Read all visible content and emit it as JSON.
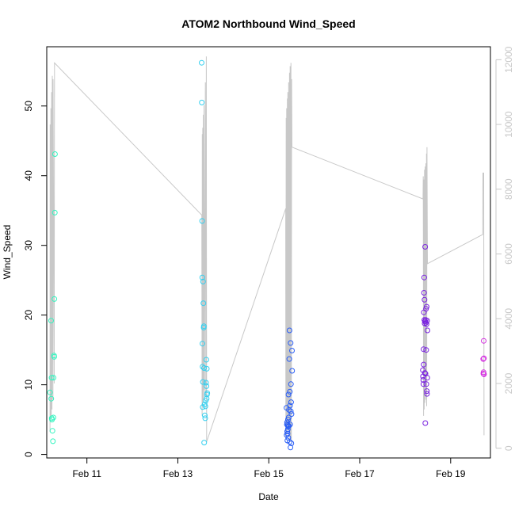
{
  "chart_data": {
    "type": "scatter",
    "title": "ATOM2 Northbound Wind_Speed",
    "xlabel": "Date",
    "ylabel": "Wind_Speed",
    "x_date_year": 2024,
    "xlim": [
      "2024-02-10 02:48",
      "2024-02-19 21:00"
    ],
    "ylim": [
      -0.5,
      58.5
    ],
    "yticks": [
      0,
      10,
      20,
      30,
      40,
      50
    ],
    "x_ticks": [
      {
        "date": "2024-02-11 00:00",
        "label": "Feb 11"
      },
      {
        "date": "2024-02-13 00:00",
        "label": "Feb 13"
      },
      {
        "date": "2024-02-15 00:00",
        "label": "Feb 15"
      },
      {
        "date": "2024-02-17 00:00",
        "label": "Feb 17"
      },
      {
        "date": "2024-02-19 00:00",
        "label": "Feb 19"
      }
    ],
    "secondary_axis": {
      "side": "right",
      "color": "#c8c8c8",
      "ylim": [
        -300,
        12400
      ],
      "ticks": [
        0,
        2000,
        4000,
        6000,
        8000,
        10000,
        12000
      ]
    },
    "grid": false,
    "series": [
      {
        "color": "#33f5c0",
        "points": [
          [
            "2024-02-10 04:32",
            8.9
          ],
          [
            "2024-02-10 05:07",
            19.2
          ],
          [
            "2024-02-10 05:12",
            8.0
          ],
          [
            "2024-02-10 05:22",
            11.0
          ],
          [
            "2024-02-10 05:27",
            5.2
          ],
          [
            "2024-02-10 05:33",
            5.0
          ],
          [
            "2024-02-10 05:48",
            3.4
          ],
          [
            "2024-02-10 06:03",
            1.9
          ],
          [
            "2024-02-10 06:19",
            5.3
          ],
          [
            "2024-02-10 06:24",
            11.0
          ],
          [
            "2024-02-10 06:39",
            14.2
          ],
          [
            "2024-02-10 06:44",
            14.0
          ],
          [
            "2024-02-10 06:49",
            22.3
          ],
          [
            "2024-02-10 07:05",
            34.7
          ],
          [
            "2024-02-10 07:10",
            43.1
          ]
        ]
      },
      {
        "color": "#33d0f0",
        "points": [
          [
            "2024-02-13 12:33",
            56.2
          ],
          [
            "2024-02-13 12:38",
            50.5
          ],
          [
            "2024-02-13 12:48",
            33.5
          ],
          [
            "2024-02-13 12:53",
            25.4
          ],
          [
            "2024-02-13 12:58",
            15.9
          ],
          [
            "2024-02-13 13:04",
            12.6
          ],
          [
            "2024-02-13 13:09",
            6.8
          ],
          [
            "2024-02-13 13:14",
            10.4
          ],
          [
            "2024-02-13 13:19",
            24.8
          ],
          [
            "2024-02-13 13:29",
            21.7
          ],
          [
            "2024-02-13 13:40",
            18.2
          ],
          [
            "2024-02-13 13:45",
            18.4
          ],
          [
            "2024-02-13 13:50",
            12.4
          ],
          [
            "2024-02-13 13:55",
            1.7
          ],
          [
            "2024-02-13 14:10",
            7.2
          ],
          [
            "2024-02-13 14:15",
            5.6
          ],
          [
            "2024-02-13 14:26",
            5.2
          ],
          [
            "2024-02-13 14:31",
            6.9
          ],
          [
            "2024-02-13 14:41",
            7.7
          ],
          [
            "2024-02-13 14:52",
            10.3
          ],
          [
            "2024-02-13 15:02",
            13.6
          ],
          [
            "2024-02-13 15:07",
            9.8
          ],
          [
            "2024-02-13 15:12",
            8.0
          ],
          [
            "2024-02-13 15:17",
            12.3
          ],
          [
            "2024-02-13 15:22",
            8.6
          ],
          [
            "2024-02-13 15:33",
            8.8
          ]
        ]
      },
      {
        "color": "#2a5ef5",
        "points": [
          [
            "2024-02-15 09:22",
            6.7
          ],
          [
            "2024-02-15 09:27",
            2.8
          ],
          [
            "2024-02-15 09:33",
            4.3
          ],
          [
            "2024-02-15 09:38",
            4.6
          ],
          [
            "2024-02-15 09:43",
            3.3
          ],
          [
            "2024-02-15 09:48",
            2.0
          ],
          [
            "2024-02-15 09:53",
            3.0
          ],
          [
            "2024-02-15 09:59",
            4.2
          ],
          [
            "2024-02-15 10:04",
            3.6
          ],
          [
            "2024-02-15 10:09",
            5.0
          ],
          [
            "2024-02-15 10:14",
            4.0
          ],
          [
            "2024-02-15 10:19",
            2.4
          ],
          [
            "2024-02-15 10:24",
            8.6
          ],
          [
            "2024-02-15 10:30",
            5.3
          ],
          [
            "2024-02-15 10:35",
            4.1
          ],
          [
            "2024-02-15 10:40",
            6.4
          ],
          [
            "2024-02-15 10:50",
            13.7
          ],
          [
            "2024-02-15 10:56",
            17.8
          ],
          [
            "2024-02-15 11:01",
            1.8
          ],
          [
            "2024-02-15 11:06",
            9.0
          ],
          [
            "2024-02-15 11:11",
            7.0
          ],
          [
            "2024-02-15 11:16",
            4.3
          ],
          [
            "2024-02-15 11:27",
            1.0
          ],
          [
            "2024-02-15 11:32",
            16.0
          ],
          [
            "2024-02-15 11:37",
            6.2
          ],
          [
            "2024-02-15 11:42",
            10.1
          ],
          [
            "2024-02-15 11:47",
            7.5
          ],
          [
            "2024-02-15 11:53",
            1.6
          ],
          [
            "2024-02-15 11:58",
            5.8
          ],
          [
            "2024-02-15 12:13",
            14.9
          ],
          [
            "2024-02-15 12:19",
            12.0
          ]
        ]
      },
      {
        "color": "#7a22e0",
        "points": [
          [
            "2024-02-18 09:20",
            12.1
          ],
          [
            "2024-02-18 09:25",
            11.2
          ],
          [
            "2024-02-18 09:31",
            10.7
          ],
          [
            "2024-02-18 09:36",
            10.1
          ],
          [
            "2024-02-18 09:41",
            15.1
          ],
          [
            "2024-02-18 09:46",
            12.9
          ],
          [
            "2024-02-18 09:51",
            20.4
          ],
          [
            "2024-02-18 09:57",
            23.2
          ],
          [
            "2024-02-18 10:02",
            25.4
          ],
          [
            "2024-02-18 10:07",
            19.3
          ],
          [
            "2024-02-18 10:12",
            22.2
          ],
          [
            "2024-02-18 10:17",
            18.8
          ],
          [
            "2024-02-18 10:22",
            11.7
          ],
          [
            "2024-02-18 10:28",
            19.1
          ],
          [
            "2024-02-18 10:33",
            29.8
          ],
          [
            "2024-02-18 10:38",
            4.5
          ],
          [
            "2024-02-18 10:43",
            11.6
          ],
          [
            "2024-02-18 10:48",
            19.3
          ],
          [
            "2024-02-18 10:54",
            18.9
          ],
          [
            "2024-02-18 10:59",
            20.9
          ],
          [
            "2024-02-18 11:04",
            15.0
          ],
          [
            "2024-02-18 11:09",
            10.1
          ],
          [
            "2024-02-18 11:14",
            18.7
          ],
          [
            "2024-02-18 11:20",
            21.2
          ],
          [
            "2024-02-18 11:25",
            9.1
          ],
          [
            "2024-02-18 11:30",
            8.7
          ],
          [
            "2024-02-18 11:35",
            19.2
          ],
          [
            "2024-02-18 11:40",
            11.0
          ],
          [
            "2024-02-18 11:46",
            17.8
          ]
        ]
      },
      {
        "color": "#d42ee0",
        "points": [
          [
            "2024-02-19 17:12",
            13.7
          ],
          [
            "2024-02-19 17:17",
            11.6
          ],
          [
            "2024-02-19 17:22",
            11.8
          ],
          [
            "2024-02-19 17:27",
            16.3
          ],
          [
            "2024-02-19 17:33",
            13.8
          ],
          [
            "2024-02-19 17:38",
            11.5
          ]
        ]
      }
    ],
    "secondary_line": {
      "color": "#c8c8c8",
      "points": [
        [
          "2024-02-10 04:32",
          500
        ],
        [
          "2024-02-10 04:37",
          10000
        ],
        [
          "2024-02-10 04:47",
          800
        ],
        [
          "2024-02-10 04:58",
          10500
        ],
        [
          "2024-02-10 05:12",
          1000
        ],
        [
          "2024-02-10 05:22",
          11000
        ],
        [
          "2024-02-10 05:33",
          1200
        ],
        [
          "2024-02-10 05:43",
          11500
        ],
        [
          "2024-02-10 06:03",
          1500
        ],
        [
          "2024-02-10 06:08",
          11400
        ],
        [
          "2024-02-10 06:44",
          2000
        ],
        [
          "2024-02-10 06:54",
          11900
        ],
        [
          "2024-02-13 12:38",
          7200
        ],
        [
          "2024-02-13 12:48",
          1000
        ],
        [
          "2024-02-13 12:53",
          9700
        ],
        [
          "2024-02-13 13:04",
          1300
        ],
        [
          "2024-02-13 13:09",
          9900
        ],
        [
          "2024-02-13 13:24",
          1500
        ],
        [
          "2024-02-13 13:29",
          10300
        ],
        [
          "2024-02-13 13:40",
          1800
        ],
        [
          "2024-02-13 13:50",
          10600
        ],
        [
          "2024-02-13 14:05",
          1500
        ],
        [
          "2024-02-13 14:31",
          11300
        ],
        [
          "2024-02-13 14:46",
          1600
        ],
        [
          "2024-02-13 15:02",
          12100
        ],
        [
          "2024-02-13 15:12",
          200
        ],
        [
          "2024-02-15 08:57",
          7400
        ],
        [
          "2024-02-15 09:02",
          300
        ],
        [
          "2024-02-15 09:12",
          10200
        ],
        [
          "2024-02-15 09:22",
          400
        ],
        [
          "2024-02-15 09:27",
          10500
        ],
        [
          "2024-02-15 09:38",
          500
        ],
        [
          "2024-02-15 09:48",
          10800
        ],
        [
          "2024-02-15 09:59",
          600
        ],
        [
          "2024-02-15 10:04",
          11000
        ],
        [
          "2024-02-15 10:19",
          700
        ],
        [
          "2024-02-15 10:30",
          11300
        ],
        [
          "2024-02-15 10:40",
          500
        ],
        [
          "2024-02-15 10:56",
          11600
        ],
        [
          "2024-02-15 11:06",
          200
        ],
        [
          "2024-02-15 11:16",
          11800
        ],
        [
          "2024-02-15 11:32",
          300
        ],
        [
          "2024-02-15 11:42",
          11900
        ],
        [
          "2024-02-15 11:53",
          200
        ],
        [
          "2024-02-15 12:03",
          11400
        ],
        [
          "2024-02-15 12:13",
          9300
        ],
        [
          "2024-02-18 09:25",
          7700
        ],
        [
          "2024-02-18 09:31",
          8400
        ],
        [
          "2024-02-18 09:41",
          1000
        ],
        [
          "2024-02-18 09:51",
          8300
        ],
        [
          "2024-02-18 10:02",
          1200
        ],
        [
          "2024-02-18 10:12",
          8600
        ],
        [
          "2024-02-18 10:22",
          1400
        ],
        [
          "2024-02-18 10:33",
          8700
        ],
        [
          "2024-02-18 10:43",
          1500
        ],
        [
          "2024-02-18 10:54",
          8800
        ],
        [
          "2024-02-18 11:04",
          1600
        ],
        [
          "2024-02-18 11:14",
          9100
        ],
        [
          "2024-02-18 11:20",
          1300
        ],
        [
          "2024-02-18 11:30",
          9300
        ],
        [
          "2024-02-18 11:46",
          5700
        ],
        [
          "2024-02-19 16:57",
          6600
        ],
        [
          "2024-02-19 17:02",
          8500
        ],
        [
          "2024-02-19 17:27",
          8500
        ],
        [
          "2024-02-19 17:38",
          400
        ]
      ]
    }
  }
}
